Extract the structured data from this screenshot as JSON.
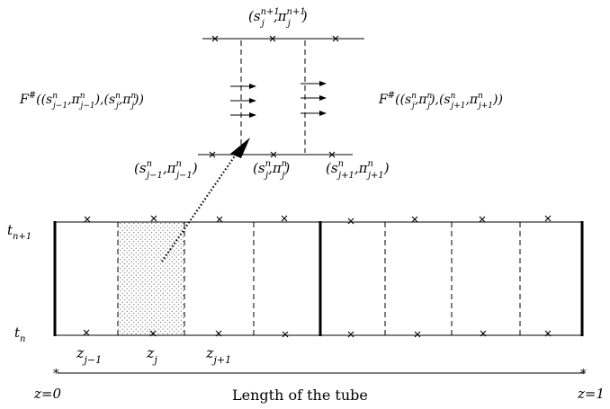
{
  "top_detail": {
    "label_top": "(s_j^{n+1}, π_j^{n+1})",
    "flux_left": "F^#((s_{j-1}^n, π_{j-1}^n),(s_j^n, π_j^n))",
    "flux_right": "F^#((s_j^n, π_j^n),(s_{j+1}^n, π_{j+1}^n))",
    "label_bottom_left": "(s_{j-1}^n, π_{j-1}^n)",
    "label_bottom_mid": "(s_j^n, π_j^n)",
    "label_bottom_right": "(s_{j+1}^n, π_{j+1}^n)"
  },
  "grid": {
    "t_top": "t_{n+1}",
    "t_bottom": "t_n",
    "z_labels": [
      "z_{j-1}",
      "z_j",
      "z_{j+1}"
    ]
  },
  "axis": {
    "start": "z=0",
    "end": "z=1",
    "caption": "Length of the tube"
  }
}
